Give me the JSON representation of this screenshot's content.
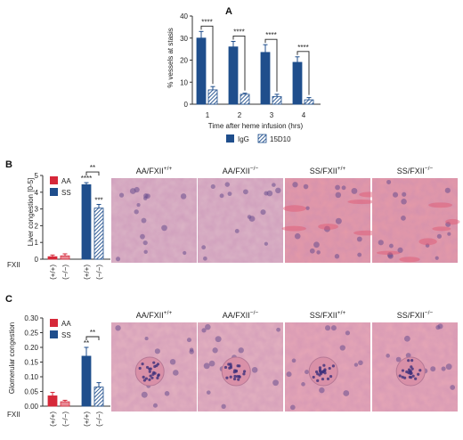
{
  "colors": {
    "igg": "#1f4e8c",
    "aa": "#d62839",
    "ss": "#1f4e8c"
  },
  "panels": {
    "a": {
      "letter": "A"
    },
    "b": {
      "letter": "B",
      "fxii_label": "FXII",
      "photo_labels": [
        "AA/FXII+/+",
        "AA/FXII−/−",
        "SS/FXII+/+",
        "SS/FXII−/−"
      ]
    },
    "c": {
      "letter": "C",
      "fxii_label": "FXII",
      "photo_labels": [
        "AA/FXII+/+",
        "AA/FXII−/−",
        "SS/FXII+/+",
        "SS/FXII−/−"
      ]
    }
  },
  "chart_data": [
    {
      "id": "A",
      "type": "bar",
      "categories": [
        "1",
        "2",
        "3",
        "4"
      ],
      "series": [
        {
          "name": "IgG",
          "values": [
            30,
            26,
            23.5,
            19
          ],
          "errors": [
            3,
            2.5,
            3.5,
            2.5
          ],
          "hatched": false
        },
        {
          "name": "15D10",
          "values": [
            6.5,
            4.5,
            3.5,
            2
          ],
          "errors": [
            1.5,
            0.5,
            1,
            1
          ],
          "hatched": true
        }
      ],
      "significance": [
        "****",
        "****",
        "****",
        "****"
      ],
      "ylabel": "% vessels at stasis",
      "xlabel": "Time after heme infusion (hrs)",
      "ylim": [
        0,
        40
      ],
      "yticks": [
        0,
        10,
        20,
        30,
        40
      ],
      "legend": "bottom"
    },
    {
      "id": "B",
      "type": "bar",
      "categories": [
        "(+/+)",
        "(−/−)",
        "(+/+)",
        "(−/−)"
      ],
      "groups": [
        {
          "name": "AA",
          "values": [
            0.15,
            0.2
          ],
          "errors": [
            0.1,
            0.12
          ]
        },
        {
          "name": "SS",
          "values": [
            4.45,
            3.05
          ],
          "errors": [
            0.12,
            0.22
          ],
          "stars": [
            "****",
            "***"
          ]
        }
      ],
      "bracket": "**",
      "ylabel": "Liver congestion [0-5]",
      "ylim": [
        0,
        5
      ],
      "yticks": [
        0,
        1,
        2,
        3,
        4,
        5
      ],
      "legend": "top-left"
    },
    {
      "id": "C",
      "type": "bar",
      "categories": [
        "(+/+)",
        "(−/−)",
        "(+/+)",
        "(−/−)"
      ],
      "groups": [
        {
          "name": "AA",
          "values": [
            0.035,
            0.015
          ],
          "errors": [
            0.012,
            0.005
          ]
        },
        {
          "name": "SS",
          "values": [
            0.17,
            0.065
          ],
          "errors": [
            0.03,
            0.015
          ],
          "stars": [
            "**",
            ""
          ]
        }
      ],
      "bracket": "**",
      "ylabel": "Glomerular congestion",
      "ylim": [
        0,
        0.3
      ],
      "yticks": [
        "0.00",
        "0.05",
        "0.10",
        "0.15",
        "0.20",
        "0.25",
        "0.30"
      ],
      "legend": "top-left"
    }
  ]
}
